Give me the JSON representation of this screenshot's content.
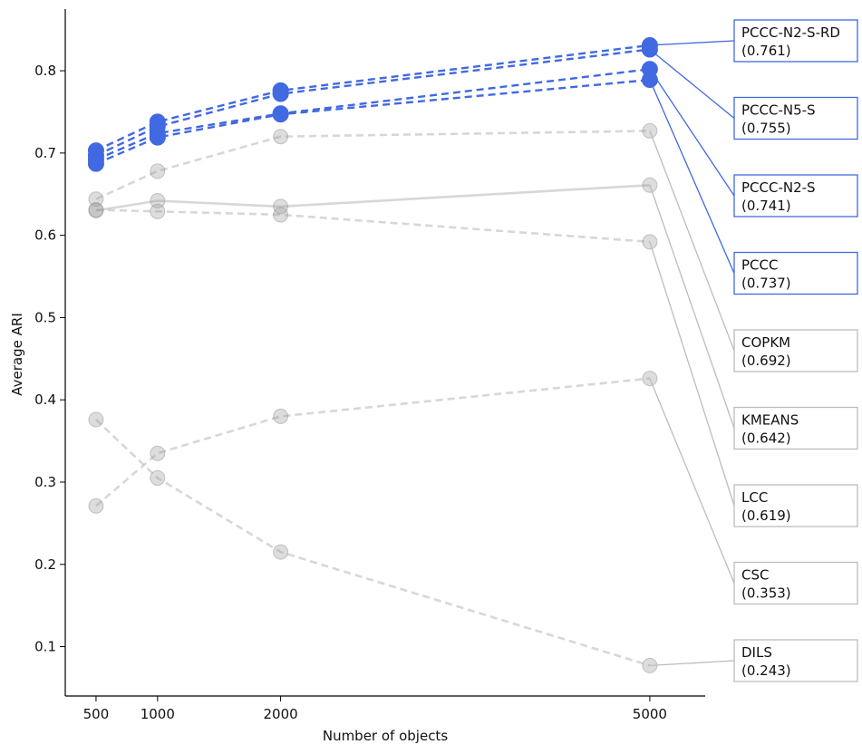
{
  "chart_data": {
    "type": "line",
    "xlabel": "Number of objects",
    "ylabel": "Average ARI",
    "x": [
      500,
      1000,
      2000,
      5000
    ],
    "x_tick_labels": [
      "500",
      "1000",
      "2000",
      "5000"
    ],
    "y_ticks": [
      0.1,
      0.2,
      0.3,
      0.4,
      0.5,
      0.6,
      0.7,
      0.8
    ],
    "y_tick_labels": [
      "0.1",
      "0.2",
      "0.3",
      "0.4",
      "0.5",
      "0.6",
      "0.7",
      "0.8"
    ],
    "xlim": [
      250,
      5450
    ],
    "ylim": [
      0.04,
      0.875
    ],
    "colors": {
      "highlight": "#4169E1",
      "muted": "#BDBDBD",
      "axis": "#000000"
    },
    "series": [
      {
        "name": "PCCC-N2-S-RD",
        "label": "(0.761)",
        "values": [
          0.703,
          0.738,
          0.776,
          0.831
        ],
        "highlight": true,
        "dash": true
      },
      {
        "name": "PCCC-N5-S",
        "label": "(0.755)",
        "values": [
          0.697,
          0.732,
          0.772,
          0.826
        ],
        "highlight": true,
        "dash": true
      },
      {
        "name": "PCCC-N2-S",
        "label": "(0.741)",
        "values": [
          0.692,
          0.724,
          0.748,
          0.802
        ],
        "highlight": true,
        "dash": true
      },
      {
        "name": "PCCC",
        "label": "(0.737)",
        "values": [
          0.687,
          0.719,
          0.747,
          0.789
        ],
        "highlight": true,
        "dash": true
      },
      {
        "name": "COPKM",
        "label": "(0.692)",
        "values": [
          0.644,
          0.678,
          0.72,
          0.727
        ],
        "highlight": false,
        "dash": true
      },
      {
        "name": "KMEANS",
        "label": "(0.642)",
        "values": [
          0.63,
          0.642,
          0.635,
          0.661
        ],
        "highlight": false,
        "dash": false
      },
      {
        "name": "LCC",
        "label": "(0.619)",
        "values": [
          0.631,
          0.629,
          0.625,
          0.592
        ],
        "highlight": false,
        "dash": true
      },
      {
        "name": "CSC",
        "label": "(0.353)",
        "values": [
          0.271,
          0.335,
          0.38,
          0.426
        ],
        "highlight": false,
        "dash": true
      },
      {
        "name": "DILS",
        "label": "(0.243)",
        "values": [
          0.376,
          0.305,
          0.215,
          0.077
        ],
        "highlight": false,
        "dash": true
      }
    ]
  }
}
